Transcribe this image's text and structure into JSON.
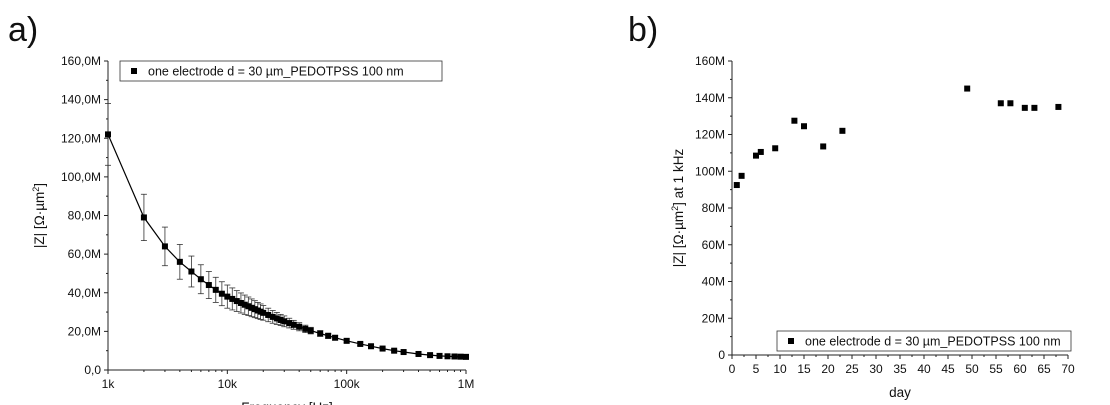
{
  "chart_data": [
    {
      "panel_label": "a)",
      "type": "line",
      "x_scale": "log",
      "xlabel": "Frequency [Hz]",
      "ylabel_parts": [
        "|Z| [Ω·µm",
        "2",
        "]"
      ],
      "xlim": [
        1000,
        1000000
      ],
      "ylim": [
        0,
        160
      ],
      "x_ticks": [
        {
          "value": 1000,
          "label": "1k"
        },
        {
          "value": 10000,
          "label": "10k"
        },
        {
          "value": 100000,
          "label": "100k"
        },
        {
          "value": 1000000,
          "label": "1M"
        }
      ],
      "y_ticks": [
        {
          "value": 0,
          "label": "0,0"
        },
        {
          "value": 20,
          "label": "20,0M"
        },
        {
          "value": 40,
          "label": "40,0M"
        },
        {
          "value": 60,
          "label": "60,0M"
        },
        {
          "value": 80,
          "label": "80,0M"
        },
        {
          "value": 100,
          "label": "100,0M"
        },
        {
          "value": 120,
          "label": "120,0M"
        },
        {
          "value": 140,
          "label": "140,0M"
        },
        {
          "value": 160,
          "label": "160,0M"
        }
      ],
      "legend": {
        "position": "top-center",
        "text": "one electrode d = 30 µm_PEDOTPSS 100 nm"
      },
      "series": [
        {
          "name": "one electrode d = 30 µm_PEDOTPSS 100 nm",
          "marker": "square",
          "color": "#000000",
          "x": [
            1000,
            2000,
            3000,
            4000,
            5000,
            6000,
            7000,
            8000,
            9000,
            10000,
            11000,
            12000,
            13000,
            14000,
            15000,
            16000,
            17000,
            18000,
            19000,
            20000,
            22000,
            24000,
            26000,
            28000,
            30000,
            33000,
            36000,
            40000,
            45000,
            50000,
            60000,
            70000,
            80000,
            100000,
            130000,
            160000,
            200000,
            250000,
            300000,
            400000,
            500000,
            600000,
            700000,
            800000,
            900000,
            1000000
          ],
          "y": [
            122,
            79,
            64,
            56,
            51,
            47,
            44,
            41.5,
            39.5,
            38,
            36.8,
            35.7,
            34.7,
            33.8,
            33,
            32.2,
            31.5,
            30.8,
            30.2,
            29.6,
            28.5,
            27.5,
            26.7,
            25.9,
            25.2,
            24.3,
            23.4,
            22.4,
            21.3,
            20.4,
            18.9,
            17.7,
            16.7,
            15.1,
            13.5,
            12.3,
            11.1,
            10.0,
            9.3,
            8.3,
            7.7,
            7.3,
            7.1,
            7.0,
            6.9,
            6.8
          ],
          "err": [
            16,
            12,
            10,
            9,
            8,
            7.5,
            7,
            6.5,
            6.2,
            6,
            5.7,
            5.4,
            5.2,
            5.0,
            4.8,
            4.6,
            4.4,
            4.2,
            4.0,
            3.8,
            3.5,
            3.3,
            3.1,
            2.9,
            2.8,
            2.5,
            2.3,
            2.1,
            1.9,
            1.7,
            1.5,
            1.3,
            1.2,
            1.0,
            0.9,
            0.8,
            0.7,
            0.6,
            0.5,
            0.4,
            0.4,
            0.3,
            0.3,
            0.3,
            0.3,
            0.3
          ]
        }
      ]
    },
    {
      "panel_label": "b)",
      "type": "scatter",
      "xlabel": "day",
      "ylabel_parts": [
        "|Z| [Ω·µm",
        "2",
        "] at 1 kHz"
      ],
      "xlim": [
        0,
        70
      ],
      "ylim": [
        0,
        160
      ],
      "x_ticks": [
        {
          "value": 0,
          "label": "0"
        },
        {
          "value": 5,
          "label": "5"
        },
        {
          "value": 10,
          "label": "10"
        },
        {
          "value": 15,
          "label": "15"
        },
        {
          "value": 20,
          "label": "20"
        },
        {
          "value": 25,
          "label": "25"
        },
        {
          "value": 30,
          "label": "30"
        },
        {
          "value": 35,
          "label": "35"
        },
        {
          "value": 40,
          "label": "40"
        },
        {
          "value": 45,
          "label": "45"
        },
        {
          "value": 50,
          "label": "50"
        },
        {
          "value": 55,
          "label": "55"
        },
        {
          "value": 60,
          "label": "60"
        },
        {
          "value": 65,
          "label": "65"
        },
        {
          "value": 70,
          "label": "70"
        }
      ],
      "y_ticks": [
        {
          "value": 0,
          "label": "0"
        },
        {
          "value": 20,
          "label": "20M"
        },
        {
          "value": 40,
          "label": "40M"
        },
        {
          "value": 60,
          "label": "60M"
        },
        {
          "value": 80,
          "label": "80M"
        },
        {
          "value": 100,
          "label": "100M"
        },
        {
          "value": 120,
          "label": "120M"
        },
        {
          "value": 140,
          "label": "140M"
        },
        {
          "value": 160,
          "label": "160M"
        }
      ],
      "legend": {
        "position": "bottom-right",
        "text": "one electrode d = 30 µm_PEDOTPSS 100 nm"
      },
      "series": [
        {
          "name": "one electrode d = 30 µm_PEDOTPSS 100 nm",
          "marker": "square",
          "color": "#000000",
          "x": [
            1,
            2,
            5,
            6,
            9,
            13,
            15,
            19,
            23,
            49,
            56,
            58,
            61,
            63,
            68
          ],
          "y": [
            92.5,
            97.5,
            108.5,
            110.5,
            112.5,
            127.5,
            124.5,
            113.5,
            122,
            145,
            137,
            137,
            134.5,
            134.5,
            135
          ]
        }
      ]
    }
  ]
}
